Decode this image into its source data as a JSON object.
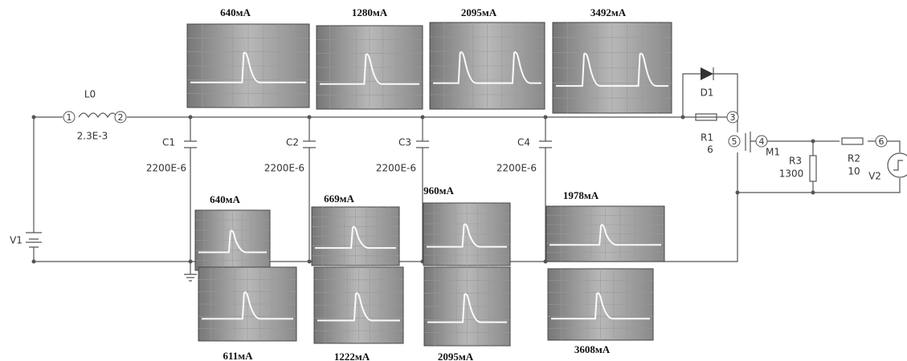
{
  "inductor": {
    "name": "L0",
    "value": "2.3E-3",
    "pins": [
      "1",
      "2"
    ]
  },
  "capacitors": [
    {
      "name": "C1",
      "value": "2200E-6"
    },
    {
      "name": "C2",
      "value": "2200E-6"
    },
    {
      "name": "C3",
      "value": "2200E-6"
    },
    {
      "name": "C4",
      "value": "2200E-6"
    }
  ],
  "diode": {
    "name": "D1"
  },
  "resistors": [
    {
      "name": "R1",
      "value": "6"
    },
    {
      "name": "R3",
      "value": "1300"
    },
    {
      "name": "R2",
      "value": "10"
    }
  ],
  "sources": [
    {
      "name": "V1"
    },
    {
      "name": "V2"
    }
  ],
  "transistor": {
    "name": "M1"
  },
  "nodes": [
    "3",
    "4",
    "5",
    "6"
  ],
  "scopes": {
    "top": [
      "640мА",
      "1280мА",
      "2095мА",
      "3492мА"
    ],
    "middle": [
      "640мА",
      "669мА",
      "960мА",
      "1978мА"
    ],
    "bottom": [
      "611мА",
      "1222мА",
      "2095мА",
      "3608мА"
    ]
  }
}
